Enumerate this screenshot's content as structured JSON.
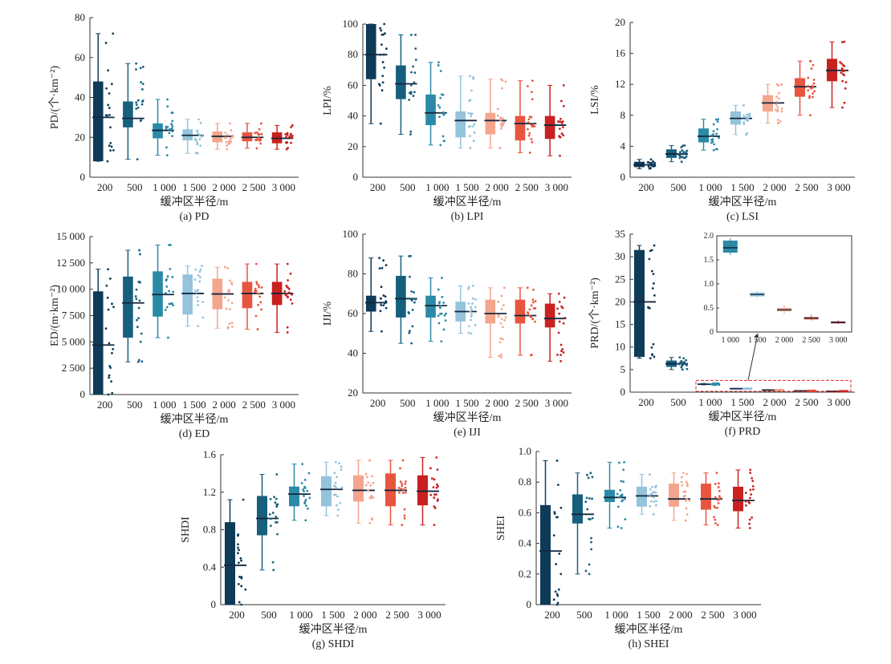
{
  "colors": [
    "#0d3b58",
    "#17607d",
    "#2b8aa6",
    "#94c3dc",
    "#f4a58d",
    "#e8553e",
    "#c8211f"
  ],
  "median_color": "#15273f",
  "chart_data": [
    {
      "id": "a",
      "type": "box",
      "caption": "(a) PD",
      "ylabel": "PD/(个·km⁻²)",
      "xlabel": "缓冲区半径/m",
      "categories": [
        "200",
        "500",
        "1 000",
        "1 500",
        "2 000",
        "2 500",
        "3 000"
      ],
      "ylim": [
        0,
        80
      ],
      "yticks": [
        0,
        20,
        40,
        60,
        80
      ],
      "ytick_labels": [
        "0",
        "20",
        "40",
        "60",
        "80"
      ],
      "boxes": [
        {
          "min": 8,
          "q1": 8,
          "median": 30,
          "q3": 48,
          "max": 72
        },
        {
          "min": 9,
          "q1": 25,
          "median": 29.5,
          "q3": 38,
          "max": 57
        },
        {
          "min": 11,
          "q1": 19.5,
          "median": 23.5,
          "q3": 27,
          "max": 39
        },
        {
          "min": 12,
          "q1": 18.5,
          "median": 21,
          "q3": 24,
          "max": 29
        },
        {
          "min": 14,
          "q1": 17.5,
          "median": 20.5,
          "q3": 23,
          "max": 27
        },
        {
          "min": 14.5,
          "q1": 18,
          "median": 20,
          "q3": 22.5,
          "max": 27
        },
        {
          "min": 14,
          "q1": 17,
          "median": 19.5,
          "q3": 22.5,
          "max": 26
        }
      ]
    },
    {
      "id": "b",
      "type": "box",
      "caption": "(b) LPI",
      "ylabel": "LPI/%",
      "xlabel": "缓冲区半径/m",
      "categories": [
        "200",
        "500",
        "1 000",
        "1 500",
        "2 000",
        "2 500",
        "3 000"
      ],
      "ylim": [
        0,
        100
      ],
      "yticks": [
        0,
        20,
        40,
        60,
        80,
        100
      ],
      "ytick_labels": [
        "0",
        "20",
        "40",
        "60",
        "80",
        "100"
      ],
      "boxes": [
        {
          "min": 35,
          "q1": 64,
          "median": 80,
          "q3": 100,
          "max": 100
        },
        {
          "min": 28,
          "q1": 51,
          "median": 61,
          "q3": 73,
          "max": 93
        },
        {
          "min": 21,
          "q1": 34,
          "median": 42,
          "q3": 54,
          "max": 75
        },
        {
          "min": 19,
          "q1": 26,
          "median": 37,
          "q3": 43,
          "max": 66
        },
        {
          "min": 19,
          "q1": 28,
          "median": 37,
          "q3": 42,
          "max": 64
        },
        {
          "min": 16,
          "q1": 24,
          "median": 35,
          "q3": 40,
          "max": 63
        },
        {
          "min": 14,
          "q1": 25,
          "median": 34,
          "q3": 40,
          "max": 60
        }
      ]
    },
    {
      "id": "c",
      "type": "box",
      "caption": "(c) LSI",
      "ylabel": "LSI/%",
      "xlabel": "缓冲区半径/m",
      "categories": [
        "200",
        "500",
        "1 000",
        "1 500",
        "2 000",
        "2 500",
        "3 000"
      ],
      "ylim": [
        0,
        20
      ],
      "yticks": [
        0,
        4,
        8,
        12,
        16,
        20
      ],
      "ytick_labels": [
        "0",
        "4",
        "8",
        "12",
        "16",
        "20"
      ],
      "boxes": [
        {
          "min": 1.1,
          "q1": 1.3,
          "median": 1.6,
          "q3": 2,
          "max": 2.3
        },
        {
          "min": 2,
          "q1": 2.5,
          "median": 3,
          "q3": 3.6,
          "max": 4.1
        },
        {
          "min": 3.5,
          "q1": 4.5,
          "median": 5.3,
          "q3": 6.3,
          "max": 7.5
        },
        {
          "min": 5.5,
          "q1": 6.8,
          "median": 7.6,
          "q3": 8.5,
          "max": 9.3
        },
        {
          "min": 7,
          "q1": 8.5,
          "median": 9.6,
          "q3": 10.6,
          "max": 12
        },
        {
          "min": 8,
          "q1": 10.4,
          "median": 11.7,
          "q3": 12.8,
          "max": 15
        },
        {
          "min": 9,
          "q1": 12.4,
          "median": 13.8,
          "q3": 15.3,
          "max": 17.5
        }
      ]
    },
    {
      "id": "d",
      "type": "box",
      "caption": "(d) ED",
      "ylabel": "ED/(m·km⁻²)",
      "xlabel": "缓冲区半径/m",
      "categories": [
        "200",
        "500",
        "1 000",
        "1 500",
        "2 000",
        "2 500",
        "3 000"
      ],
      "ylim": [
        0,
        15000
      ],
      "yticks": [
        0,
        2500,
        5000,
        7500,
        10000,
        12500,
        15000
      ],
      "ytick_labels": [
        "0",
        "2 500",
        "5 000",
        "7 500",
        "10 000",
        "12 500",
        "15 000"
      ],
      "boxes": [
        {
          "min": 0,
          "q1": 0,
          "median": 4700,
          "q3": 9800,
          "max": 11900
        },
        {
          "min": 3100,
          "q1": 5400,
          "median": 8700,
          "q3": 11200,
          "max": 13700
        },
        {
          "min": 5400,
          "q1": 7400,
          "median": 9500,
          "q3": 11700,
          "max": 14200
        },
        {
          "min": 6500,
          "q1": 7600,
          "median": 9600,
          "q3": 11400,
          "max": 12200
        },
        {
          "min": 6300,
          "q1": 8100,
          "median": 9550,
          "q3": 11000,
          "max": 12100
        },
        {
          "min": 6200,
          "q1": 8200,
          "median": 9600,
          "q3": 10700,
          "max": 12400
        },
        {
          "min": 5900,
          "q1": 8500,
          "median": 9600,
          "q3": 10700,
          "max": 12400
        }
      ]
    },
    {
      "id": "e",
      "type": "box",
      "caption": "(e) IJI",
      "ylabel": "IJI/%",
      "xlabel": "缓冲区半径/m",
      "categories": [
        "200",
        "500",
        "1 000",
        "1 500",
        "2 000",
        "2 500",
        "3 000"
      ],
      "ylim": [
        20,
        100
      ],
      "yticks": [
        20,
        40,
        60,
        80,
        100
      ],
      "ytick_labels": [
        "20",
        "40",
        "60",
        "80",
        "100"
      ],
      "boxes": [
        {
          "min": 51,
          "q1": 61,
          "median": 65.5,
          "q3": 69,
          "max": 88
        },
        {
          "min": 45,
          "q1": 58,
          "median": 67.5,
          "q3": 79,
          "max": 89
        },
        {
          "min": 46,
          "q1": 58,
          "median": 64,
          "q3": 69,
          "max": 78
        },
        {
          "min": 50,
          "q1": 56,
          "median": 61,
          "q3": 66,
          "max": 74
        },
        {
          "min": 38,
          "q1": 55,
          "median": 60,
          "q3": 67,
          "max": 73
        },
        {
          "min": 39,
          "q1": 55,
          "median": 59,
          "q3": 67,
          "max": 73
        },
        {
          "min": 36,
          "q1": 53,
          "median": 57.5,
          "q3": 65,
          "max": 70
        }
      ]
    },
    {
      "id": "f",
      "type": "box",
      "caption": "(f) PRD",
      "ylabel": "PRD/(个·km⁻²)",
      "xlabel": "缓冲区半径/m",
      "categories": [
        "200",
        "500",
        "1 000",
        "1 500",
        "2 000",
        "2 500",
        "3 000"
      ],
      "ylim": [
        0,
        35
      ],
      "yticks": [
        0,
        5,
        10,
        15,
        20,
        25,
        30,
        35
      ],
      "ytick_labels": [
        "0",
        "5",
        "10",
        "15",
        "20",
        "25",
        "30",
        "35"
      ],
      "boxes": [
        {
          "min": 7.5,
          "q1": 7.8,
          "median": 20,
          "q3": 31.5,
          "max": 32.5
        },
        {
          "min": 5,
          "q1": 5.6,
          "median": 6.3,
          "q3": 7,
          "max": 7.7
        },
        {
          "min": 1.6,
          "q1": 1.65,
          "median": 1.75,
          "q3": 1.9,
          "max": 1.95
        },
        {
          "min": 0.72,
          "q1": 0.74,
          "median": 0.78,
          "q3": 0.82,
          "max": 0.85
        },
        {
          "min": 0.38,
          "q1": 0.43,
          "median": 0.46,
          "q3": 0.5,
          "max": 0.56
        },
        {
          "min": 0.24,
          "q1": 0.26,
          "median": 0.29,
          "q3": 0.31,
          "max": 0.36
        },
        {
          "min": 0.17,
          "q1": 0.18,
          "median": 0.2,
          "q3": 0.22,
          "max": 0.24
        }
      ],
      "inset": {
        "categories": [
          "1 000",
          "1 500",
          "2 000",
          "2 500",
          "3 000"
        ],
        "ylim": [
          0,
          2.0
        ],
        "yticks": [
          0,
          0.5,
          1.0,
          1.5,
          2.0
        ],
        "ytick_labels": [
          "0",
          "0.5",
          "1.0",
          "1.5",
          "2.0"
        ]
      }
    },
    {
      "id": "g",
      "type": "box",
      "caption": "(g) SHDI",
      "ylabel": "SHDI",
      "xlabel": "缓冲区半径/m",
      "categories": [
        "200",
        "500",
        "1 000",
        "1 500",
        "2 000",
        "2 500",
        "3 000"
      ],
      "ylim": [
        0,
        1.6
      ],
      "yticks": [
        0,
        0.4,
        0.8,
        1.2,
        1.6
      ],
      "ytick_labels": [
        "0",
        "0.4",
        "0.8",
        "1.2",
        "1.6"
      ],
      "boxes": [
        {
          "min": 0,
          "q1": 0,
          "median": 0.42,
          "q3": 0.88,
          "max": 1.12
        },
        {
          "min": 0.37,
          "q1": 0.74,
          "median": 0.92,
          "q3": 1.16,
          "max": 1.39
        },
        {
          "min": 0.9,
          "q1": 1.05,
          "median": 1.18,
          "q3": 1.26,
          "max": 1.5
        },
        {
          "min": 0.95,
          "q1": 1.05,
          "median": 1.23,
          "q3": 1.37,
          "max": 1.52
        },
        {
          "min": 0.87,
          "q1": 1.1,
          "median": 1.22,
          "q3": 1.38,
          "max": 1.54
        },
        {
          "min": 0.85,
          "q1": 1.05,
          "median": 1.22,
          "q3": 1.4,
          "max": 1.54
        },
        {
          "min": 0.85,
          "q1": 1.06,
          "median": 1.21,
          "q3": 1.38,
          "max": 1.57
        }
      ]
    },
    {
      "id": "h",
      "type": "box",
      "caption": "(h) SHEI",
      "ylabel": "SHEI",
      "xlabel": "缓冲区半径/m",
      "categories": [
        "200",
        "500",
        "1 000",
        "1 500",
        "2 000",
        "2 500",
        "3 000"
      ],
      "ylim": [
        0,
        1.0
      ],
      "yticks": [
        0,
        0.2,
        0.4,
        0.6,
        0.8,
        1.0
      ],
      "ytick_labels": [
        "0",
        "0.2",
        "0.4",
        "0.6",
        "0.8",
        "1.0"
      ],
      "boxes": [
        {
          "min": 0,
          "q1": 0,
          "median": 0.35,
          "q3": 0.65,
          "max": 0.94
        },
        {
          "min": 0.2,
          "q1": 0.53,
          "median": 0.59,
          "q3": 0.72,
          "max": 0.86
        },
        {
          "min": 0.5,
          "q1": 0.67,
          "median": 0.7,
          "q3": 0.75,
          "max": 0.93
        },
        {
          "min": 0.59,
          "q1": 0.64,
          "median": 0.71,
          "q3": 0.77,
          "max": 0.85
        },
        {
          "min": 0.55,
          "q1": 0.64,
          "median": 0.69,
          "q3": 0.79,
          "max": 0.86
        },
        {
          "min": 0.52,
          "q1": 0.62,
          "median": 0.69,
          "q3": 0.79,
          "max": 0.86
        },
        {
          "min": 0.5,
          "q1": 0.61,
          "median": 0.68,
          "q3": 0.77,
          "max": 0.88
        }
      ]
    }
  ]
}
